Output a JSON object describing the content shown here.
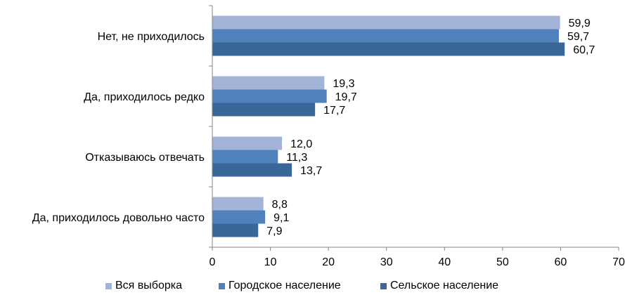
{
  "chart_data": {
    "type": "bar",
    "orientation": "horizontal",
    "categories": [
      "Нет, не приходилось",
      "Да, приходилось редко",
      "Отказываюсь отвечать",
      "Да, приходилось довольно часто"
    ],
    "series": [
      {
        "name": "Вся выборка",
        "color": "#a3b4d9",
        "values": [
          59.9,
          19.3,
          12.0,
          8.8
        ],
        "labels": [
          "59,9",
          "19,3",
          "12,0",
          "8,8"
        ]
      },
      {
        "name": "Городское население",
        "color": "#4f81bd",
        "values": [
          59.7,
          19.7,
          11.3,
          9.1
        ],
        "labels": [
          "59,7",
          "19,7",
          "11,3",
          "9,1"
        ]
      },
      {
        "name": "Сельское население",
        "color": "#3a6698",
        "values": [
          60.7,
          17.7,
          13.7,
          7.9
        ],
        "labels": [
          "60,7",
          "17,7",
          "13,7",
          "7,9"
        ]
      }
    ],
    "xlim": [
      0,
      70
    ],
    "xticks": [
      "0",
      "10",
      "20",
      "30",
      "40",
      "50",
      "60",
      "70"
    ],
    "grid": false,
    "legend_position": "bottom"
  }
}
